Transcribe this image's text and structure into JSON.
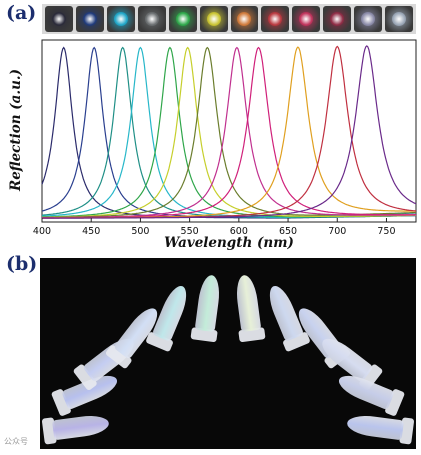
{
  "panels": {
    "a": "(a)",
    "b": "(b)"
  },
  "thumbnail_colors": [
    "#2a2a3a",
    "#1f3a7a",
    "#1fa6c8",
    "#6a6e70",
    "#2ea84a",
    "#c9c431",
    "#d07a3a",
    "#b9383f",
    "#c0325b",
    "#8e2b44",
    "#8a8aa8",
    "#9aa6b6"
  ],
  "watermark": "公众号",
  "chart_data": {
    "type": "line",
    "title": "",
    "xlabel": "Wavelength (nm)",
    "ylabel": "Reflection (a.u.)",
    "xlim": [
      400,
      780
    ],
    "x_ticks": [
      400,
      450,
      500,
      550,
      600,
      650,
      700,
      750
    ],
    "grid": false,
    "legend": "none",
    "series": [
      {
        "peak_nm": 422,
        "color": "#2b2b6b"
      },
      {
        "peak_nm": 453,
        "color": "#2a3f8f"
      },
      {
        "peak_nm": 482,
        "color": "#1f8f86"
      },
      {
        "peak_nm": 500,
        "color": "#27b7c9"
      },
      {
        "peak_nm": 530,
        "color": "#2fa64a"
      },
      {
        "peak_nm": 548,
        "color": "#c6cf2c"
      },
      {
        "peak_nm": 568,
        "color": "#6b7d2d"
      },
      {
        "peak_nm": 598,
        "color": "#c0308f"
      },
      {
        "peak_nm": 620,
        "color": "#d0207a"
      },
      {
        "peak_nm": 660,
        "color": "#e0a020"
      },
      {
        "peak_nm": 700,
        "color": "#c03040"
      },
      {
        "peak_nm": 730,
        "color": "#6a2a8a"
      }
    ]
  },
  "photo": {
    "tube_count": 12,
    "tube_tints": [
      "#b8b3e6",
      "#b7c0ee",
      "#c4cdf2",
      "#d2dff5",
      "#bfe7ea",
      "#c3ecd9",
      "#e7f0d8",
      "#cdd8ef",
      "#c8d2ef",
      "#d6dcf0",
      "#c6cde8",
      "#b9c4ec"
    ]
  }
}
